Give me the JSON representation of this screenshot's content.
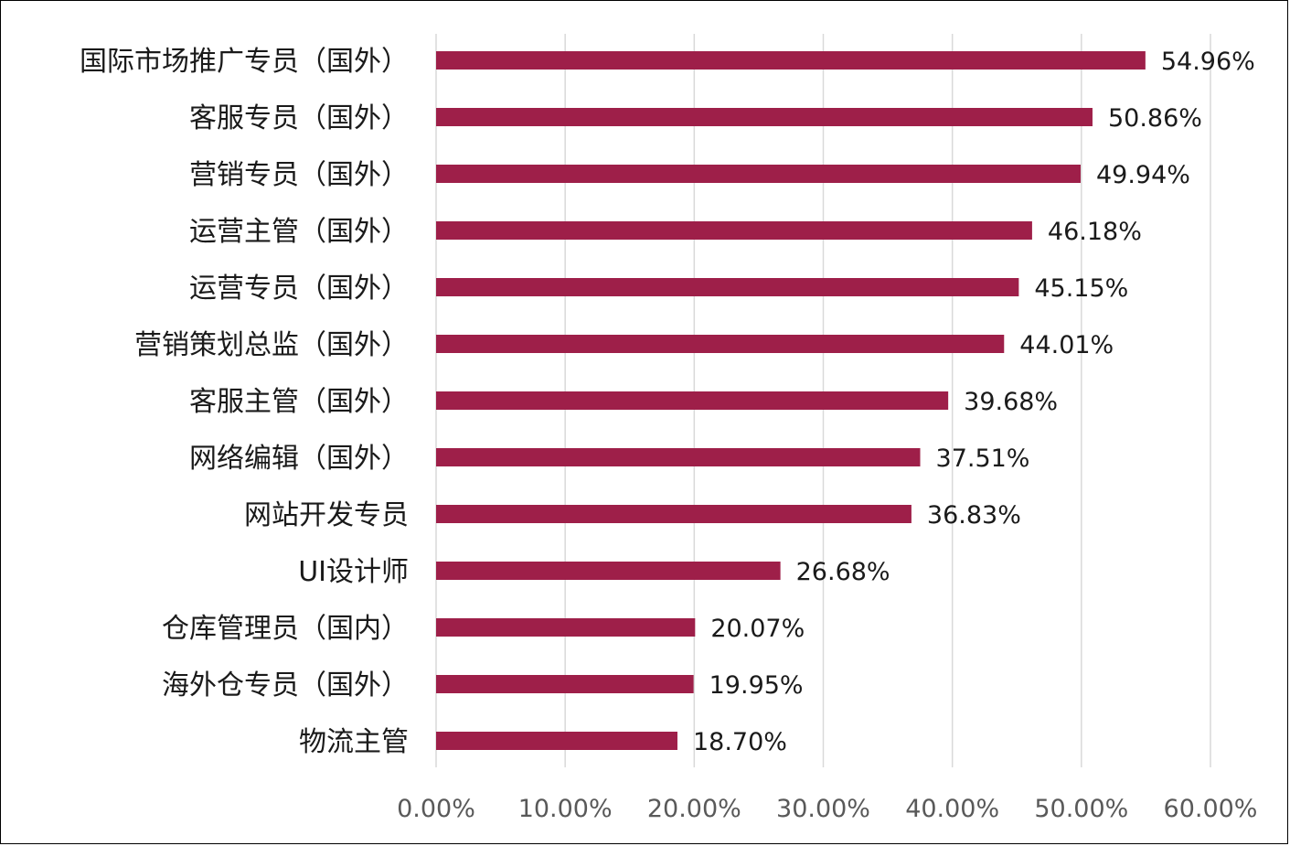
{
  "chart_data": {
    "type": "bar",
    "orientation": "horizontal",
    "title": "",
    "xlabel": "",
    "ylabel": "",
    "categories": [
      "国际市场推广专员（国外）",
      "客服专员（国外）",
      "营销专员（国外）",
      "运营主管（国外）",
      "运营专员（国外）",
      "营销策划总监（国外）",
      "客服主管（国外）",
      "网络编辑（国外）",
      "网站开发专员",
      "UI设计师",
      "仓库管理员（国内）",
      "海外仓专员（国外）",
      "物流主管"
    ],
    "values": [
      54.96,
      50.86,
      49.94,
      46.18,
      45.15,
      44.01,
      39.68,
      37.51,
      36.83,
      26.68,
      20.07,
      19.95,
      18.7
    ],
    "value_labels": [
      "54.96%",
      "50.86%",
      "49.94%",
      "46.18%",
      "45.15%",
      "44.01%",
      "39.68%",
      "37.51%",
      "36.83%",
      "26.68%",
      "20.07%",
      "19.95%",
      "18.70%"
    ],
    "xlim": [
      0,
      60
    ],
    "x_ticks": [
      0,
      10,
      20,
      30,
      40,
      50,
      60
    ],
    "x_tick_labels": [
      "0.00%",
      "10.00%",
      "20.00%",
      "30.00%",
      "40.00%",
      "50.00%",
      "60.00%"
    ],
    "grid": "vertical",
    "legend": "none",
    "colors": {
      "bar": "#9e1f49",
      "grid": "#d9d9d9",
      "text": "#1a1a1a",
      "tick_text": "#595959",
      "border": "#000000"
    }
  }
}
